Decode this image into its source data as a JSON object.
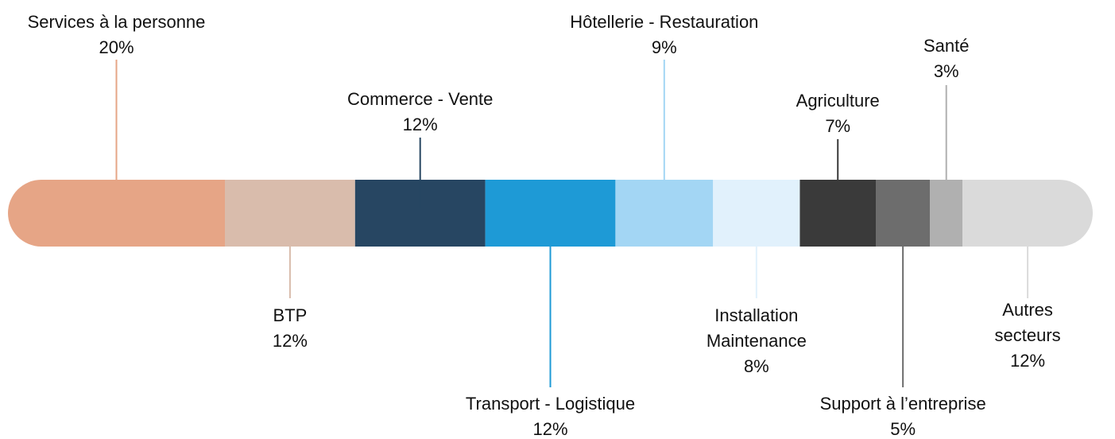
{
  "chart_data": {
    "type": "stacked-bar",
    "categories": [
      "Services à la personne",
      "BTP",
      "Commerce - Vente",
      "Transport - Logistique",
      "Hôtellerie - Restauration",
      "Installation\nMaintenance",
      "Agriculture",
      "Support à l’entreprise",
      "Santé",
      "Autres secteurs"
    ],
    "values": [
      20,
      12,
      12,
      12,
      9,
      8,
      7,
      5,
      3,
      12
    ],
    "value_labels": [
      "20%",
      "12%",
      "12%",
      "12%",
      "9%",
      "8%",
      "7%",
      "5%",
      "3%",
      "12%"
    ],
    "colors": [
      "#e6a586",
      "#d9bcac",
      "#274662",
      "#1e9ad6",
      "#a3d6f4",
      "#e1f1fc",
      "#3a3a3a",
      "#6d6d6d",
      "#b0b0b0",
      "#dadada"
    ],
    "xlim": [
      0,
      100
    ]
  }
}
